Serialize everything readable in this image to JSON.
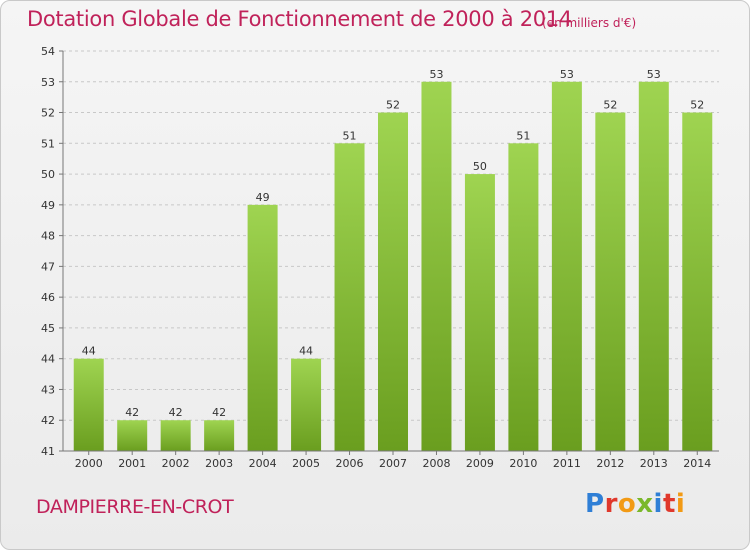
{
  "header": {
    "title": "Dotation Globale de Fonctionnement de 2000 à 2014",
    "subtitle": "(en milliers d'€)"
  },
  "footer": {
    "commune": "DAMPIERRE-EN-CROT",
    "logo_text": "Proxiti"
  },
  "colors": {
    "title": "#c0225a",
    "bar_top": "#9fd451",
    "bar_bottom": "#6a9e1f",
    "grid": "#c8c8c8",
    "logo_letters": [
      "#2f7fd6",
      "#e0382c",
      "#f29a14",
      "#7ab82a",
      "#2f7fd6",
      "#e0382c",
      "#f29a14"
    ]
  },
  "chart_data": {
    "type": "bar",
    "categories": [
      "2000",
      "2001",
      "2002",
      "2003",
      "2004",
      "2005",
      "2006",
      "2007",
      "2008",
      "2009",
      "2010",
      "2011",
      "2012",
      "2013",
      "2014"
    ],
    "values": [
      44,
      42,
      42,
      42,
      49,
      44,
      51,
      52,
      53,
      50,
      51,
      53,
      52,
      53,
      52
    ],
    "data_labels": [
      "44",
      "42",
      "42",
      "42",
      "49",
      "44",
      "51",
      "52",
      "53",
      "50",
      "51",
      "53",
      "52",
      "53",
      "52"
    ],
    "yticks": [
      "41",
      "42",
      "43",
      "44",
      "45",
      "46",
      "47",
      "48",
      "49",
      "50",
      "51",
      "52",
      "53",
      "54"
    ],
    "ylim": [
      41,
      54
    ],
    "grid": true,
    "title": "Dotation Globale de Fonctionnement de 2000 à 2014",
    "xlabel": "",
    "ylabel": ""
  }
}
